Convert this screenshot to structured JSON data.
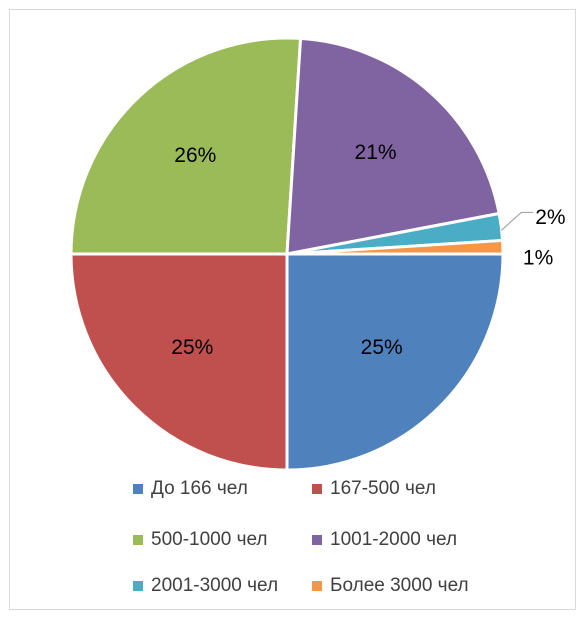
{
  "chart_data": {
    "type": "pie",
    "title": "",
    "categories": [
      "До 166 чел",
      "167-500 чел",
      "500-1000 чел",
      "1001-2000 чел",
      "2001-3000 чел",
      "Более 3000 чел"
    ],
    "values": [
      25,
      25,
      26,
      21,
      2,
      1
    ],
    "labels": [
      "25%",
      "25%",
      "26%",
      "21%",
      "2%",
      "1%"
    ],
    "colors": [
      "#4f81bd",
      "#c0504d",
      "#9bbb59",
      "#8064a2",
      "#4bacc6",
      "#f79646"
    ],
    "legend": "bottom",
    "start_angle_deg": 90,
    "direction": "clockwise"
  }
}
